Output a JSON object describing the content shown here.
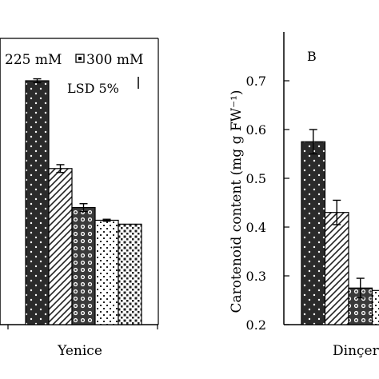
{
  "chart_data": [
    {
      "type": "bar",
      "panel_label": "",
      "legend": [
        "225 mM",
        "300 mM"
      ],
      "lsd_label": "LSD 5%",
      "categories": [
        "Yenice"
      ],
      "series": [
        {
          "name": "",
          "values": [
            0.7
          ],
          "error": [
            0.004
          ],
          "pattern": "dots-dark"
        },
        {
          "name": "",
          "values": [
            0.52
          ],
          "error": [
            0.008
          ],
          "pattern": "diagonal"
        },
        {
          "name": "",
          "values": [
            0.44
          ],
          "error": [
            0.008
          ],
          "pattern": "circles"
        },
        {
          "name": "225 mM",
          "values": [
            0.414
          ],
          "error": [
            0.002
          ],
          "pattern": "dots-light"
        },
        {
          "name": "300 mM",
          "values": [
            0.406
          ],
          "error": [
            0
          ],
          "pattern": "squares"
        }
      ],
      "ylim": [
        0.2,
        0.75
      ],
      "xlabel": "",
      "ylabel": ""
    },
    {
      "type": "bar",
      "panel_label": "B",
      "categories": [
        "Dinçer"
      ],
      "yticks": [
        "0.2",
        "0.3",
        "0.4",
        "0.5",
        "0.6",
        "0.7"
      ],
      "ylabel": "Carotenoid content (mg g FW⁻¹)",
      "ylim": [
        0.2,
        0.75
      ],
      "series": [
        {
          "name": "",
          "values": [
            0.575
          ],
          "error": [
            0.025
          ],
          "pattern": "dots-dark"
        },
        {
          "name": "",
          "values": [
            0.43
          ],
          "error": [
            0.025
          ],
          "pattern": "diagonal"
        },
        {
          "name": "",
          "values": [
            0.275
          ],
          "error": [
            0.02
          ],
          "pattern": "circles"
        },
        {
          "name": "",
          "values": [
            0.27
          ],
          "error": [
            0
          ],
          "pattern": "dots-light"
        }
      ]
    }
  ]
}
